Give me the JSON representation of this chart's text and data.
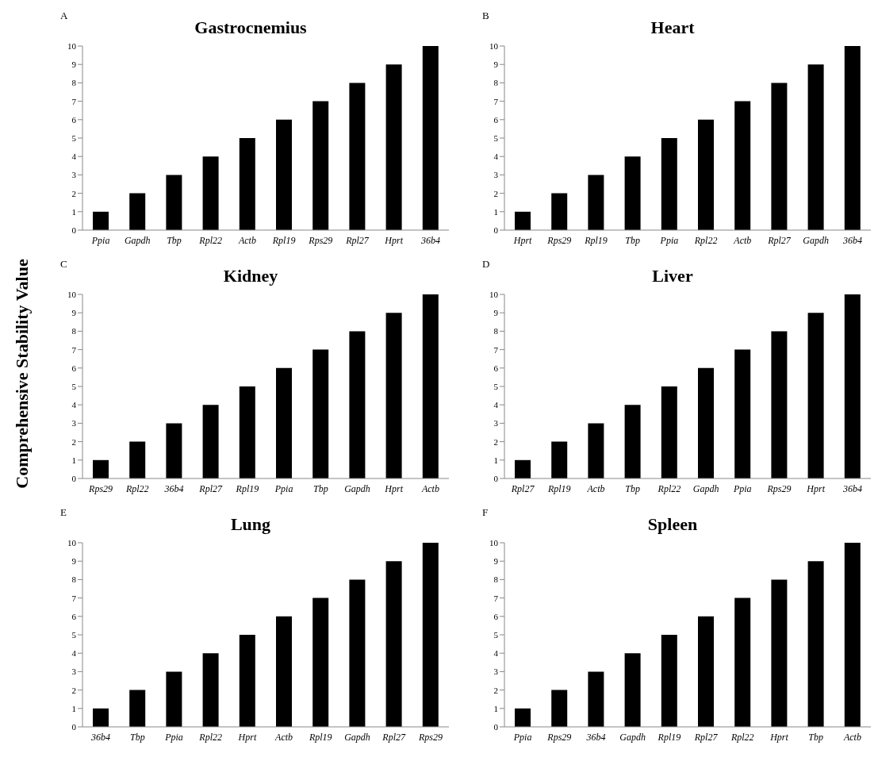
{
  "chart_data": [
    {
      "type": "bar",
      "title": "Gastrocnemius",
      "annotations": [
        "A"
      ],
      "categories": [
        "Ppia",
        "Gapdh",
        "Tbp",
        "Rpl22",
        "Actb",
        "Rpl19",
        "Rps29",
        "Rpl27",
        "Hprt",
        "36b4"
      ],
      "values": [
        1,
        2,
        3,
        4,
        5,
        6,
        7,
        8,
        9,
        10
      ],
      "color": "#000000",
      "ylim": [
        0,
        10
      ],
      "yticks": [
        0,
        1,
        2,
        3,
        4,
        5,
        6,
        7,
        8,
        9,
        10
      ]
    },
    {
      "type": "bar",
      "title": "Heart",
      "annotations": [
        "B"
      ],
      "categories": [
        "Hprt",
        "Rps29",
        "Rpl19",
        "Tbp",
        "Ppia",
        "Rpl22",
        "Actb",
        "Rpl27",
        "Gapdh",
        "36b4"
      ],
      "values": [
        1,
        2,
        3,
        4,
        5,
        6,
        7,
        8,
        9,
        10
      ],
      "color": "#000000",
      "ylim": [
        0,
        10
      ],
      "yticks": [
        0,
        1,
        2,
        3,
        4,
        5,
        6,
        7,
        8,
        9,
        10
      ]
    },
    {
      "type": "bar",
      "title": "Kidney",
      "ylabel": "Comprehensive Stability Value",
      "annotations": [
        "C"
      ],
      "categories": [
        "Rps29",
        "Rpl22",
        "36b4",
        "Rpl27",
        "Rpl19",
        "Ppia",
        "Tbp",
        "Gapdh",
        "Hprt",
        "Actb"
      ],
      "values": [
        1,
        2,
        3,
        4,
        5,
        6,
        7,
        8,
        9,
        10
      ],
      "color": "#000000",
      "ylim": [
        0,
        10
      ],
      "yticks": [
        0,
        1,
        2,
        3,
        4,
        5,
        6,
        7,
        8,
        9,
        10
      ]
    },
    {
      "type": "bar",
      "title": "Liver",
      "annotations": [
        "D"
      ],
      "categories": [
        "Rpl27",
        "Rpl19",
        "Actb",
        "Tbp",
        "Rpl22",
        "Gapdh",
        "Ppia",
        "Rps29",
        "Hprt",
        "36b4"
      ],
      "values": [
        1,
        2,
        3,
        4,
        5,
        6,
        7,
        8,
        9,
        10
      ],
      "color": "#000000",
      "ylim": [
        0,
        10
      ],
      "yticks": [
        0,
        1,
        2,
        3,
        4,
        5,
        6,
        7,
        8,
        9,
        10
      ]
    },
    {
      "type": "bar",
      "title": "Lung",
      "annotations": [
        "E"
      ],
      "categories": [
        "36b4",
        "Tbp",
        "Ppia",
        "Rpl22",
        "Hprt",
        "Actb",
        "Rpl19",
        "Gapdh",
        "Rpl27",
        "Rps29"
      ],
      "values": [
        1,
        2,
        3,
        4,
        5,
        6,
        7,
        8,
        9,
        10
      ],
      "color": "#000000",
      "ylim": [
        0,
        10
      ],
      "yticks": [
        0,
        1,
        2,
        3,
        4,
        5,
        6,
        7,
        8,
        9,
        10
      ]
    },
    {
      "type": "bar",
      "title": "Spleen",
      "annotations": [
        "F"
      ],
      "categories": [
        "Ppia",
        "Rps29",
        "36b4",
        "Gapdh",
        "Rpl19",
        "Rpl27",
        "Rpl22",
        "Hprt",
        "Tbp",
        "Actb"
      ],
      "values": [
        1,
        2,
        3,
        4,
        5,
        6,
        7,
        8,
        9,
        10
      ],
      "color": "#000000",
      "ylim": [
        0,
        10
      ],
      "yticks": [
        0,
        1,
        2,
        3,
        4,
        5,
        6,
        7,
        8,
        9,
        10
      ]
    }
  ]
}
